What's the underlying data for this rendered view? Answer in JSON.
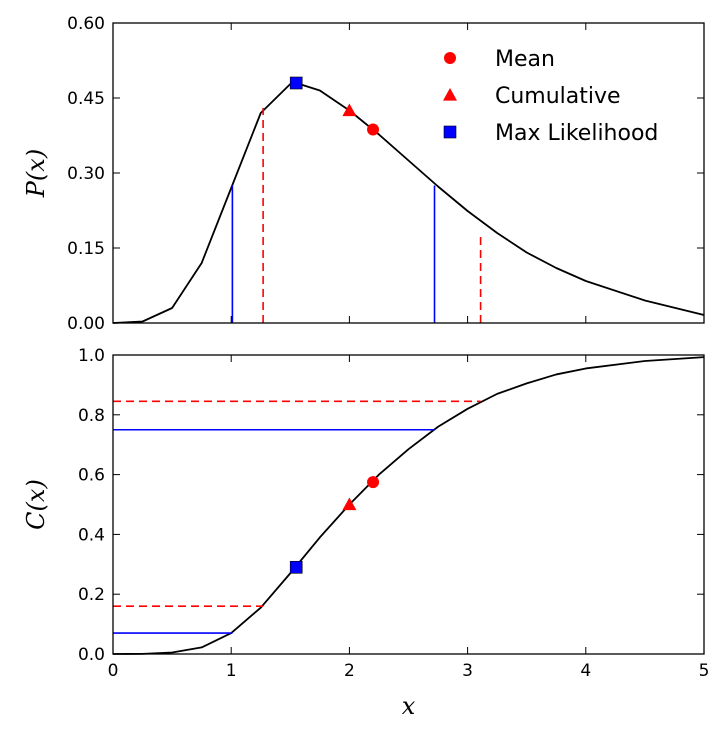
{
  "chart_data": [
    {
      "type": "line",
      "ylabel": "P(x)",
      "xlim": [
        0,
        5
      ],
      "ylim": [
        0,
        0.6
      ],
      "yticks": [
        "0.00",
        "0.15",
        "0.30",
        "0.45",
        "0.60"
      ],
      "grid": false,
      "legend_position": "top-right",
      "curve": {
        "x": [
          0,
          0.25,
          0.5,
          0.75,
          1.0,
          1.25,
          1.5,
          1.55,
          1.75,
          2.0,
          2.25,
          2.5,
          2.75,
          3.0,
          3.25,
          3.5,
          3.75,
          4.0,
          4.5,
          5.0
        ],
        "y": [
          0,
          0.003,
          0.03,
          0.12,
          0.27,
          0.42,
          0.478,
          0.48,
          0.465,
          0.425,
          0.377,
          0.325,
          0.273,
          0.224,
          0.18,
          0.141,
          0.11,
          0.084,
          0.045,
          0.016
        ]
      },
      "vertical_lines": [
        {
          "x": 1.01,
          "y": 0.275,
          "color": "#0000ff",
          "style": "solid"
        },
        {
          "x": 2.72,
          "y": 0.275,
          "color": "#0000ff",
          "style": "solid"
        },
        {
          "x": 1.27,
          "y": 0.43,
          "color": "#ff0000",
          "style": "dashed"
        },
        {
          "x": 3.11,
          "y": 0.18,
          "color": "#ff0000",
          "style": "dashed"
        }
      ],
      "markers": [
        {
          "name": "Mean",
          "x": 2.2,
          "y": 0.387,
          "shape": "circle",
          "color": "#ff0000"
        },
        {
          "name": "Cumulative",
          "x": 2.0,
          "y": 0.425,
          "shape": "triangle",
          "color": "#ff0000"
        },
        {
          "name": "Max Likelihood",
          "x": 1.55,
          "y": 0.48,
          "shape": "square",
          "color": "#0000ff"
        }
      ]
    },
    {
      "type": "line",
      "xlabel": "x",
      "ylabel": "C(x)",
      "xlim": [
        0,
        5
      ],
      "ylim": [
        0,
        1
      ],
      "xticks": [
        "0",
        "1",
        "2",
        "3",
        "4",
        "5"
      ],
      "yticks": [
        "0.0",
        "0.2",
        "0.4",
        "0.6",
        "0.8",
        "1.0"
      ],
      "grid": false,
      "curve": {
        "x": [
          0,
          0.25,
          0.5,
          0.75,
          1.0,
          1.25,
          1.5,
          1.75,
          2.0,
          2.25,
          2.5,
          2.75,
          3.0,
          3.25,
          3.5,
          3.75,
          4.0,
          4.5,
          5.0
        ],
        "y": [
          0,
          0.0003,
          0.005,
          0.022,
          0.07,
          0.155,
          0.27,
          0.39,
          0.5,
          0.6,
          0.685,
          0.76,
          0.82,
          0.87,
          0.905,
          0.935,
          0.955,
          0.98,
          0.993
        ]
      },
      "horizontal_lines": [
        {
          "y": 0.845,
          "x": 3.11,
          "color": "#ff0000",
          "style": "dashed"
        },
        {
          "y": 0.75,
          "x": 2.72,
          "color": "#0000ff",
          "style": "solid"
        },
        {
          "y": 0.16,
          "x": 1.27,
          "color": "#ff0000",
          "style": "dashed"
        },
        {
          "y": 0.07,
          "x": 1.01,
          "color": "#0000ff",
          "style": "solid"
        }
      ],
      "markers": [
        {
          "name": "Mean",
          "x": 2.2,
          "y": 0.575,
          "shape": "circle",
          "color": "#ff0000"
        },
        {
          "name": "Cumulative",
          "x": 2.0,
          "y": 0.5,
          "shape": "triangle",
          "color": "#ff0000"
        },
        {
          "name": "Max Likelihood",
          "x": 1.55,
          "y": 0.29,
          "shape": "square",
          "color": "#0000ff"
        }
      ]
    }
  ]
}
